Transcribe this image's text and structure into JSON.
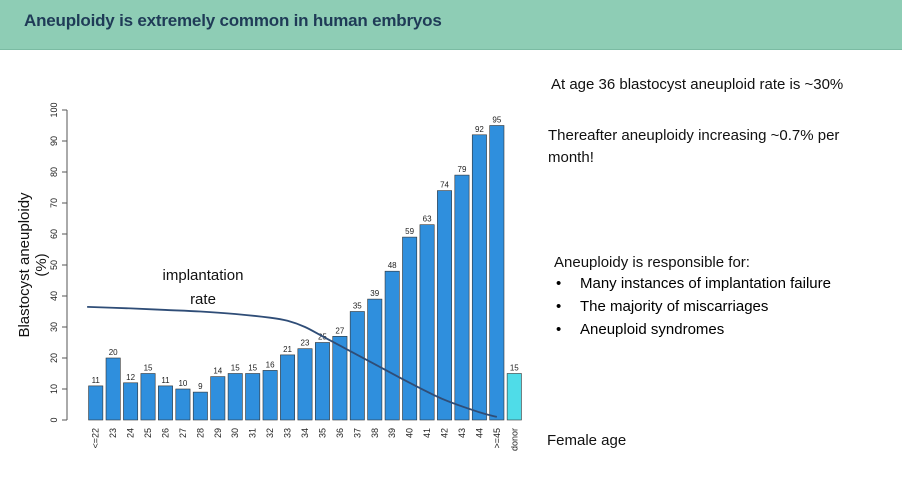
{
  "header": {
    "title": "Aneuploidy is extremely common in human embryos"
  },
  "side_text": {
    "age36": "At age 36 blastocyst aneuploid rate is ~30%",
    "thereafter": "Thereafter aneuploidy increasing ~0.7% per month!",
    "responsible_heading": "Aneuploidy is responsible for:",
    "responsible_items": [
      "Many instances of implantation failure",
      "The majority of miscarriages",
      "Aneuploid syndromes"
    ]
  },
  "chart_data": {
    "type": "bar",
    "title": "",
    "ylabel": "Blastocyst aneuploidy (%)",
    "xlabel": "Female age",
    "ylim": [
      0,
      100
    ],
    "yticks": [
      0,
      10,
      20,
      30,
      40,
      50,
      60,
      70,
      80,
      90,
      100
    ],
    "grid": false,
    "categories": [
      "<=22",
      "23",
      "24",
      "25",
      "26",
      "27",
      "28",
      "29",
      "30",
      "31",
      "32",
      "33",
      "34",
      "35",
      "36",
      "37",
      "38",
      "39",
      "40",
      "41",
      "42",
      "43",
      "44",
      ">=45",
      "donor"
    ],
    "values": [
      11,
      20,
      12,
      15,
      11,
      10,
      9,
      14,
      15,
      15,
      16,
      21,
      23,
      25,
      27,
      35,
      39,
      48,
      59,
      63,
      74,
      79,
      92,
      95,
      15
    ],
    "bar_colors": {
      "default": "#2f8fdd",
      "donor": "#4fdce8",
      "edge": "#333333"
    },
    "overlay_line": {
      "label": "implantation rate",
      "color": "#2f4d77",
      "points": [
        [
          "<=22",
          36.5
        ],
        [
          "24",
          36
        ],
        [
          "26",
          35.5
        ],
        [
          "28",
          35
        ],
        [
          "30",
          34.2
        ],
        [
          "32",
          33
        ],
        [
          "33",
          32
        ],
        [
          "34",
          30
        ],
        [
          "35",
          27
        ],
        [
          "36",
          24
        ],
        [
          "38",
          18
        ],
        [
          "40",
          12
        ],
        [
          "42",
          6.5
        ],
        [
          "44",
          2.5
        ],
        [
          ">=45",
          1
        ]
      ]
    }
  }
}
